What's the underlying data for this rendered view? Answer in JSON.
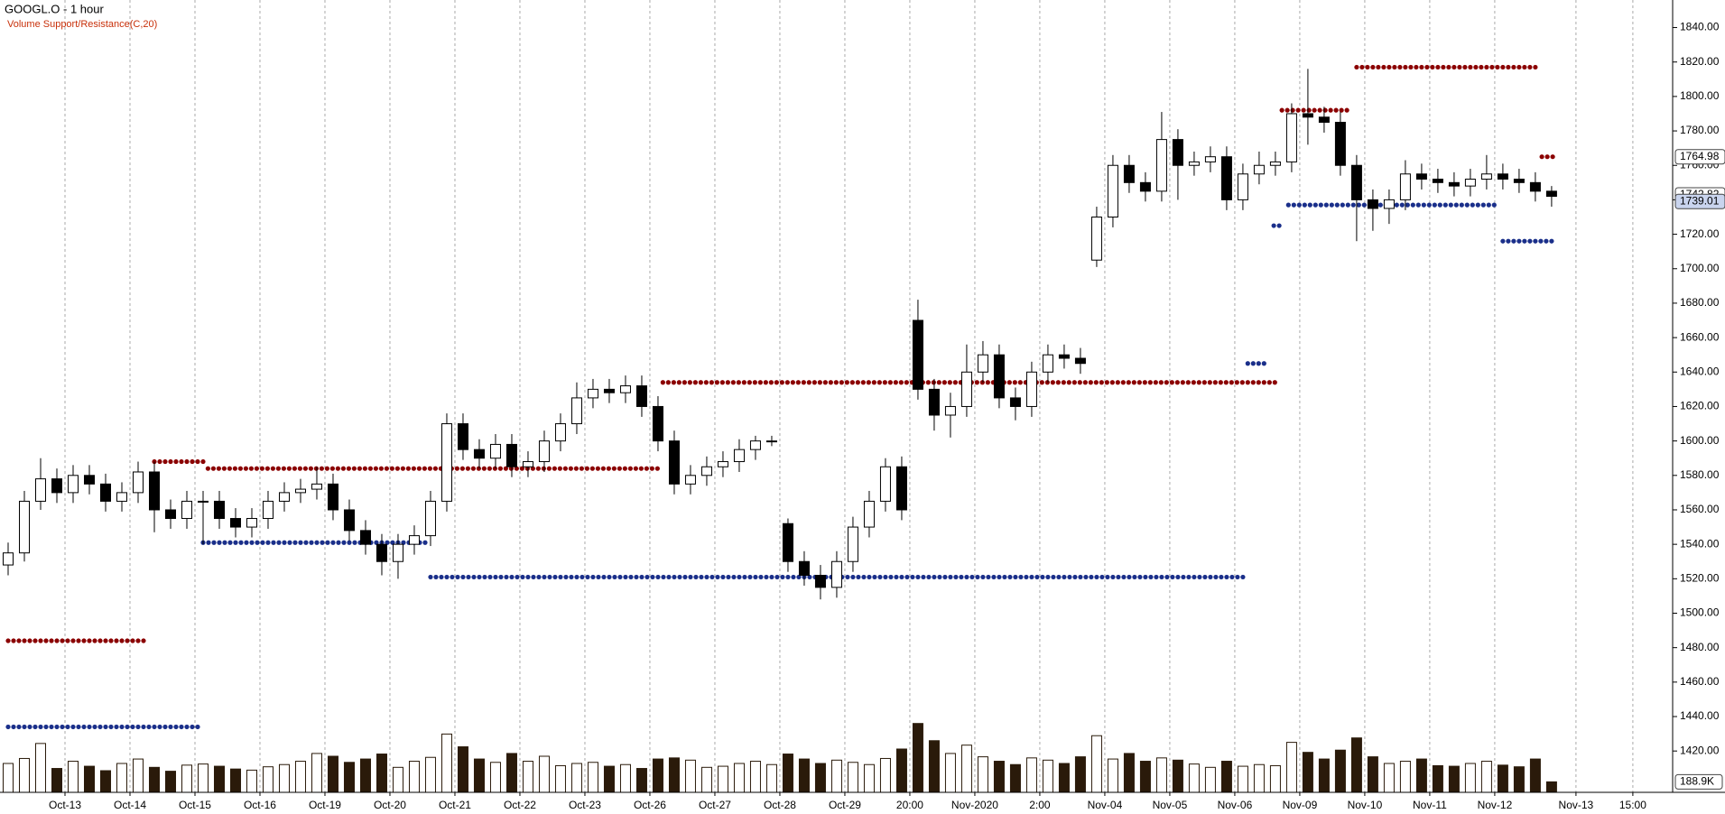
{
  "chart_data": {
    "type": "candlestick",
    "title": "GOOGL.O - 1 hour",
    "subtitle": "Volume Support/Resistance(C,20)",
    "ylim": [
      1396,
      1856
    ],
    "yticks": [
      {
        "value": 1420,
        "label": "1420.00"
      },
      {
        "value": 1440,
        "label": "1440.00"
      },
      {
        "value": 1460,
        "label": "1460.00"
      },
      {
        "value": 1480,
        "label": "1480.00"
      },
      {
        "value": 1500,
        "label": "1500.00"
      },
      {
        "value": 1520,
        "label": "1520.00"
      },
      {
        "value": 1540,
        "label": "1540.00"
      },
      {
        "value": 1560,
        "label": "1560.00"
      },
      {
        "value": 1580,
        "label": "1580.00"
      },
      {
        "value": 1600,
        "label": "1600.00"
      },
      {
        "value": 1620,
        "label": "1620.00"
      },
      {
        "value": 1640,
        "label": "1640.00"
      },
      {
        "value": 1660,
        "label": "1660.00"
      },
      {
        "value": 1680,
        "label": "1680.00"
      },
      {
        "value": 1700,
        "label": "1700.00"
      },
      {
        "value": 1720,
        "label": "1720.00"
      },
      {
        "value": 1740,
        "label": "1740.00"
      },
      {
        "value": 1760,
        "label": "1760.00"
      },
      {
        "value": 1780,
        "label": "1780.00"
      },
      {
        "value": 1800,
        "label": "1800.00"
      },
      {
        "value": 1820,
        "label": "1820.00"
      },
      {
        "value": 1840,
        "label": "1840.00"
      }
    ],
    "xlim": [
      -0.5,
      102.45
    ],
    "xticks": [
      {
        "value": 3.5,
        "label": "Oct-13"
      },
      {
        "value": 7.5,
        "label": "Oct-14"
      },
      {
        "value": 11.5,
        "label": "Oct-15"
      },
      {
        "value": 15.5,
        "label": "Oct-16"
      },
      {
        "value": 19.5,
        "label": "Oct-19"
      },
      {
        "value": 23.5,
        "label": "Oct-20"
      },
      {
        "value": 27.5,
        "label": "Oct-21"
      },
      {
        "value": 31.5,
        "label": "Oct-22"
      },
      {
        "value": 35.5,
        "label": "Oct-23"
      },
      {
        "value": 39.5,
        "label": "Oct-26"
      },
      {
        "value": 43.5,
        "label": "Oct-27"
      },
      {
        "value": 47.5,
        "label": "Oct-28"
      },
      {
        "value": 51.5,
        "label": "Oct-29"
      },
      {
        "value": 55.5,
        "label": "20:00"
      },
      {
        "value": 59.5,
        "label": "Nov-2020"
      },
      {
        "value": 63.5,
        "label": "2:00"
      },
      {
        "value": 67.5,
        "label": "Nov-04"
      },
      {
        "value": 71.5,
        "label": "Nov-05"
      },
      {
        "value": 75.5,
        "label": "Nov-06"
      },
      {
        "value": 79.5,
        "label": "Nov-09"
      },
      {
        "value": 83.5,
        "label": "Nov-10"
      },
      {
        "value": 87.5,
        "label": "Nov-11"
      },
      {
        "value": 91.5,
        "label": "Nov-12"
      },
      {
        "value": 96.5,
        "label": "Nov-13"
      },
      {
        "value": 100,
        "label": "15:00"
      }
    ],
    "xgrid": true,
    "open": [
      1528,
      1535,
      1565,
      1578,
      1570,
      1580,
      1575,
      1565,
      1570,
      1582,
      1560,
      1555,
      1565,
      1565,
      1555,
      1550,
      1555,
      1565,
      1570,
      1572,
      1575,
      1560,
      1548,
      1540,
      1530,
      1540,
      1545,
      1565,
      1610,
      1595,
      1590,
      1598,
      1585,
      1588,
      1600,
      1610,
      1625,
      1630,
      1628,
      1632,
      1620,
      1600,
      1575,
      1580,
      1585,
      1588,
      1595,
      1600,
      1552,
      1530,
      1522,
      1515,
      1530,
      1550,
      1565,
      1585,
      1670,
      1630,
      1615,
      1620,
      1640,
      1650,
      1625,
      1620,
      1640,
      1650,
      1648,
      1705,
      1730,
      1760,
      1750,
      1745,
      1775,
      1760,
      1762,
      1765,
      1740,
      1755,
      1760,
      1762,
      1790,
      1788,
      1785,
      1760,
      1740,
      1735,
      1740,
      1755,
      1752,
      1750,
      1748,
      1752,
      1755,
      1752,
      1750,
      1745
    ],
    "high": [
      1541,
      1571,
      1590,
      1584,
      1586,
      1586,
      1581,
      1576,
      1588,
      1588,
      1566,
      1571,
      1571,
      1571,
      1561,
      1561,
      1571,
      1576,
      1578,
      1585,
      1581,
      1566,
      1554,
      1546,
      1546,
      1551,
      1571,
      1616,
      1616,
      1601,
      1604,
      1604,
      1594,
      1606,
      1616,
      1634,
      1636,
      1636,
      1638,
      1638,
      1626,
      1606,
      1586,
      1591,
      1594,
      1601,
      1603,
      1603,
      1555,
      1536,
      1528,
      1536,
      1556,
      1571,
      1590,
      1591,
      1682,
      1636,
      1628,
      1656,
      1658,
      1656,
      1631,
      1646,
      1656,
      1656,
      1654,
      1736,
      1766,
      1766,
      1756,
      1791,
      1781,
      1768,
      1771,
      1771,
      1761,
      1768,
      1768,
      1796,
      1816,
      1794,
      1791,
      1766,
      1746,
      1746,
      1763,
      1761,
      1758,
      1756,
      1758,
      1766,
      1761,
      1758,
      1756,
      1748
    ],
    "low": [
      1522,
      1530,
      1560,
      1564,
      1564,
      1569,
      1559,
      1559,
      1564,
      1547,
      1549,
      1549,
      1540,
      1549,
      1544,
      1544,
      1549,
      1559,
      1564,
      1566,
      1554,
      1542,
      1534,
      1522,
      1520,
      1534,
      1539,
      1559,
      1589,
      1584,
      1584,
      1579,
      1579,
      1582,
      1594,
      1604,
      1619,
      1622,
      1622,
      1614,
      1594,
      1569,
      1569,
      1574,
      1579,
      1582,
      1589,
      1597,
      1524,
      1516,
      1508,
      1509,
      1524,
      1544,
      1559,
      1554,
      1624,
      1606,
      1602,
      1614,
      1634,
      1619,
      1612,
      1614,
      1634,
      1642,
      1639,
      1701,
      1724,
      1744,
      1739,
      1739,
      1740,
      1754,
      1756,
      1734,
      1734,
      1749,
      1754,
      1756,
      1772,
      1779,
      1754,
      1716,
      1722,
      1726,
      1734,
      1746,
      1744,
      1742,
      1742,
      1746,
      1746,
      1744,
      1739,
      1736
    ],
    "close": [
      1535,
      1565,
      1578,
      1570,
      1580,
      1575,
      1565,
      1570,
      1582,
      1560,
      1555,
      1565,
      1565,
      1555,
      1550,
      1555,
      1565,
      1570,
      1572,
      1575,
      1560,
      1548,
      1540,
      1530,
      1540,
      1545,
      1565,
      1610,
      1595,
      1590,
      1598,
      1585,
      1588,
      1600,
      1610,
      1625,
      1630,
      1628,
      1632,
      1620,
      1600,
      1575,
      1580,
      1585,
      1588,
      1595,
      1600,
      1600,
      1530,
      1522,
      1515,
      1530,
      1550,
      1565,
      1585,
      1560,
      1630,
      1615,
      1620,
      1640,
      1650,
      1625,
      1620,
      1640,
      1650,
      1648,
      1645,
      1730,
      1760,
      1750,
      1745,
      1775,
      1760,
      1762,
      1765,
      1740,
      1755,
      1760,
      1762,
      1790,
      1788,
      1785,
      1760,
      1740,
      1735,
      1740,
      1755,
      1752,
      1750,
      1748,
      1752,
      1755,
      1752,
      1750,
      1745,
      1742
    ],
    "volume": [
      520000,
      610000,
      880000,
      430000,
      560000,
      470000,
      390000,
      520000,
      600000,
      450000,
      380000,
      490000,
      510000,
      470000,
      420000,
      400000,
      460000,
      500000,
      560000,
      700000,
      650000,
      540000,
      600000,
      690000,
      450000,
      560000,
      630000,
      1050000,
      820000,
      600000,
      540000,
      700000,
      560000,
      650000,
      480000,
      520000,
      540000,
      470000,
      500000,
      430000,
      600000,
      620000,
      580000,
      450000,
      470000,
      520000,
      560000,
      500000,
      690000,
      600000,
      520000,
      580000,
      540000,
      500000,
      610000,
      780000,
      1240000,
      930000,
      700000,
      850000,
      640000,
      560000,
      500000,
      620000,
      580000,
      520000,
      640000,
      1020000,
      600000,
      700000,
      560000,
      620000,
      580000,
      510000,
      450000,
      560000,
      470000,
      500000,
      480000,
      900000,
      720000,
      600000,
      760000,
      980000,
      640000,
      520000,
      560000,
      600000,
      480000,
      470000,
      520000,
      560000,
      490000,
      460000,
      600000,
      188900
    ],
    "volume_ylim": [
      0,
      1300000
    ],
    "volume_tag": {
      "value": 188900,
      "label": "188.9K"
    },
    "price_tags": [
      1764.98,
      1742.82,
      1739.01
    ],
    "price_tag_colors": [
      "#ffffff",
      "#ffffff",
      "#c9d4ee"
    ],
    "levels": [
      {
        "start": 0,
        "end": 8.5,
        "value": 1484,
        "color": "#8b0000"
      },
      {
        "start": 9,
        "end": 12,
        "value": 1588,
        "color": "#8b0000"
      },
      {
        "start": 12.3,
        "end": 40,
        "value": 1584,
        "color": "#8b0000"
      },
      {
        "start": 40.3,
        "end": 78,
        "value": 1634,
        "color": "#8b0000"
      },
      {
        "start": 78.4,
        "end": 82.7,
        "value": 1792,
        "color": "#8b0000"
      },
      {
        "start": 83,
        "end": 94,
        "value": 1817,
        "color": "#8b0000"
      },
      {
        "start": 94.4,
        "end": 95.3,
        "value": 1765,
        "color": "#8b0000"
      },
      {
        "start": 0,
        "end": 11.7,
        "value": 1434,
        "color": "#1a2f8a"
      },
      {
        "start": 12,
        "end": 25.7,
        "value": 1541,
        "color": "#1a2f8a"
      },
      {
        "start": 26,
        "end": 76,
        "value": 1521,
        "color": "#1a2f8a"
      },
      {
        "start": 76.3,
        "end": 77.6,
        "value": 1645,
        "color": "#1a2f8a"
      },
      {
        "start": 77.9,
        "end": 78.3,
        "value": 1725,
        "color": "#1a2f8a"
      },
      {
        "start": 78.8,
        "end": 91.7,
        "value": 1737,
        "color": "#1a2f8a"
      },
      {
        "start": 92,
        "end": 95.3,
        "value": 1716,
        "color": "#1a2f8a"
      }
    ]
  }
}
